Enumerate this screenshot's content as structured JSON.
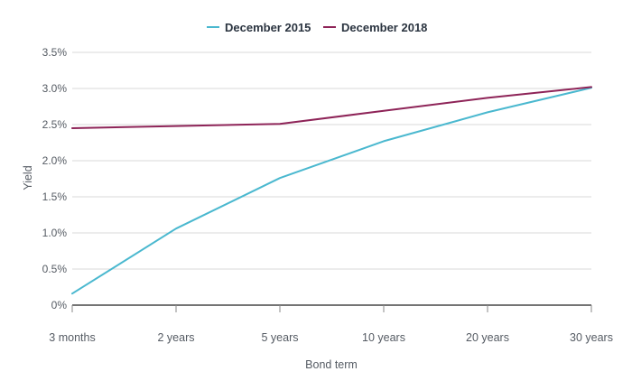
{
  "chart_data": {
    "type": "line",
    "categories": [
      "3 months",
      "2 years",
      "5 years",
      "10 years",
      "20 years",
      "30 years"
    ],
    "series": [
      {
        "name": "December 2015",
        "color": "#4ab8cf",
        "values": [
          0.16,
          1.06,
          1.76,
          2.27,
          2.67,
          3.01
        ]
      },
      {
        "name": "December 2018",
        "color": "#8e2458",
        "values": [
          2.45,
          2.48,
          2.51,
          2.69,
          2.87,
          3.02
        ]
      }
    ],
    "yticks": [
      "0%",
      "0.5%",
      "1.0%",
      "1.5%",
      "2.0%",
      "2.5%",
      "3.0%",
      "3.5%"
    ],
    "ylim": [
      0,
      3.5
    ],
    "ytick_step": 0.5,
    "xlabel": "Bond term",
    "ylabel": "Yield",
    "legend": "top-center",
    "grid": true
  }
}
